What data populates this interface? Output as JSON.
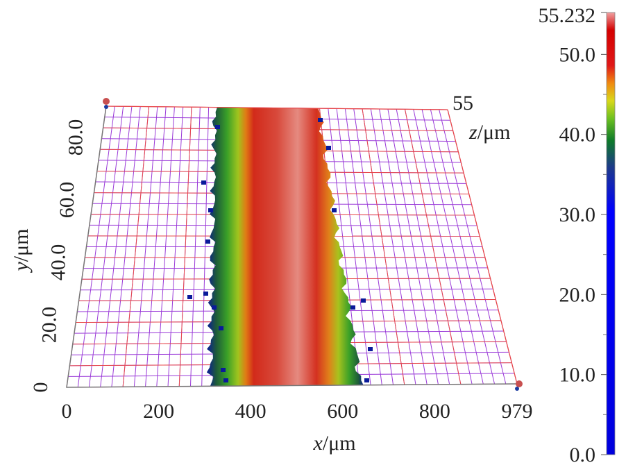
{
  "chart_data": {
    "type": "heatmap",
    "view": "3d-surface-perspective",
    "title": "",
    "x_axis": {
      "label": "x/μm",
      "label_var": "x",
      "label_unit": "/μm",
      "range": [
        0,
        979
      ],
      "ticks": [
        "0",
        "200",
        "400",
        "600",
        "800",
        "979"
      ]
    },
    "y_axis": {
      "label": "y/μm",
      "label_var": "y",
      "label_unit": "/μm",
      "range": [
        0,
        90
      ],
      "ticks": [
        "0",
        "20.0",
        "40.0",
        "60.0",
        "80.0"
      ]
    },
    "z_axis": {
      "label": "z/μm",
      "label_var": "z",
      "label_unit": "/μm",
      "max_label": "55"
    },
    "colorbar": {
      "max_label": "55.232",
      "min": 0,
      "max": 55.232,
      "ticks": [
        "50.0",
        "40.0",
        "30.0",
        "20.0",
        "10.0",
        "0.0"
      ],
      "colors": [
        "#0000ee",
        "#0000ff",
        "#1a3aa0",
        "#0b7a2e",
        "#5fc21f",
        "#cfcf1a",
        "#f08a10",
        "#e01414",
        "#d40000",
        "#e87a7a"
      ]
    },
    "track": {
      "x_range": [
        300,
        650
      ],
      "peak_height": 55.232,
      "description_colors": [
        "blue edge",
        "green",
        "red core",
        "pink peak"
      ]
    },
    "grid": true,
    "legend": "colorbar-right"
  }
}
